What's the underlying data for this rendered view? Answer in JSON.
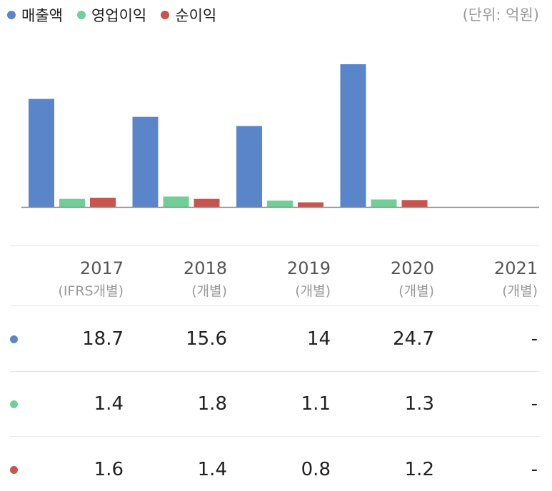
{
  "legend": {
    "items": [
      {
        "label": "매출액",
        "color": "#5b85c9"
      },
      {
        "label": "영업이익",
        "color": "#6fcf97"
      },
      {
        "label": "순이익",
        "color": "#c9544d"
      }
    ],
    "unit": "(단위: 억원)"
  },
  "table": {
    "columns": [
      {
        "year": "2017",
        "sub": "(IFRS개별)"
      },
      {
        "year": "2018",
        "sub": "(개별)"
      },
      {
        "year": "2019",
        "sub": "(개별)"
      },
      {
        "year": "2020",
        "sub": "(개별)"
      },
      {
        "year": "2021",
        "sub": "(개별)"
      }
    ],
    "rows": [
      {
        "name": "매출액",
        "color": "#5b85c9",
        "cells": [
          "18.7",
          "15.6",
          "14",
          "24.7",
          "-"
        ]
      },
      {
        "name": "영업이익",
        "color": "#6fcf97",
        "cells": [
          "1.4",
          "1.8",
          "1.1",
          "1.3",
          "-"
        ]
      },
      {
        "name": "순이익",
        "color": "#c9544d",
        "cells": [
          "1.6",
          "1.4",
          "0.8",
          "1.2",
          "-"
        ]
      }
    ]
  },
  "chart_data": {
    "type": "bar",
    "title": "",
    "xlabel": "",
    "ylabel": "",
    "categories": [
      "2017",
      "2018",
      "2019",
      "2020",
      "2021"
    ],
    "series": [
      {
        "name": "매출액",
        "color": "#5b85c9",
        "values": [
          18.7,
          15.6,
          14,
          24.7,
          null
        ]
      },
      {
        "name": "영업이익",
        "color": "#6fcf97",
        "values": [
          1.4,
          1.8,
          1.1,
          1.3,
          null
        ]
      },
      {
        "name": "순이익",
        "color": "#c9544d",
        "values": [
          1.6,
          1.4,
          0.8,
          1.2,
          null
        ]
      }
    ],
    "ylim": [
      0,
      24.7
    ],
    "grid": false,
    "legend_position": "top-left"
  }
}
